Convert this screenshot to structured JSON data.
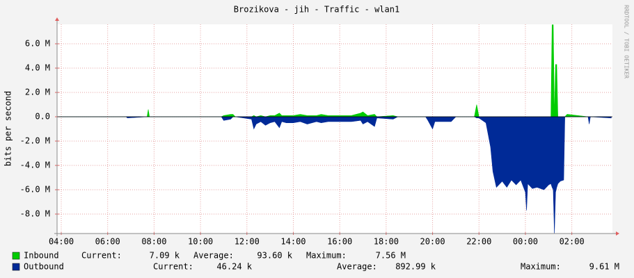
{
  "chart_data": {
    "type": "area",
    "title": "Brozikova - jih - Traffic - wlan1",
    "y_label": "bits per second",
    "watermark": "RRDTOOL / TOBI OETIKER",
    "grid": true,
    "xlim": [
      3.82,
      27.75
    ],
    "xticks": [
      {
        "value": 4,
        "label": "04:00"
      },
      {
        "value": 6,
        "label": "06:00"
      },
      {
        "value": 8,
        "label": "08:00"
      },
      {
        "value": 10,
        "label": "10:00"
      },
      {
        "value": 12,
        "label": "12:00"
      },
      {
        "value": 14,
        "label": "14:00"
      },
      {
        "value": 16,
        "label": "16:00"
      },
      {
        "value": 18,
        "label": "18:00"
      },
      {
        "value": 20,
        "label": "20:00"
      },
      {
        "value": 22,
        "label": "22:00"
      },
      {
        "value": 24,
        "label": "00:00"
      },
      {
        "value": 26,
        "label": "02:00"
      }
    ],
    "ylim": [
      -9600000,
      7600000
    ],
    "yticks": [
      {
        "value": 6000000,
        "label": "6.0 M"
      },
      {
        "value": 4000000,
        "label": "4.0 M"
      },
      {
        "value": 2000000,
        "label": "2.0 M"
      },
      {
        "value": 0,
        "label": "0.0"
      },
      {
        "value": -2000000,
        "label": "-2.0 M"
      },
      {
        "value": -4000000,
        "label": "-4.0 M"
      },
      {
        "value": -6000000,
        "label": "-6.0 M"
      },
      {
        "value": -8000000,
        "label": "-8.0 M"
      }
    ],
    "x": [
      3.82,
      6.8,
      6.85,
      7.7,
      7.75,
      7.8,
      10.9,
      11.0,
      11.3,
      11.4,
      11.5,
      12.2,
      12.3,
      12.4,
      12.6,
      12.8,
      13.0,
      13.2,
      13.4,
      13.5,
      13.7,
      14.0,
      14.3,
      14.6,
      15.0,
      15.2,
      15.5,
      16.0,
      16.5,
      16.9,
      17.0,
      17.2,
      17.5,
      17.6,
      18.3,
      18.5,
      19.7,
      19.8,
      20.0,
      20.1,
      20.3,
      20.8,
      21.0,
      21.8,
      21.9,
      22.0,
      22.3,
      22.4,
      22.5,
      22.6,
      22.75,
      23.0,
      23.2,
      23.4,
      23.6,
      23.8,
      24.0,
      24.05,
      24.1,
      24.3,
      24.5,
      24.8,
      25.0,
      25.1,
      25.15,
      25.2,
      25.25,
      25.3,
      25.35,
      25.4,
      25.5,
      25.65,
      25.7,
      25.8,
      26.7,
      26.75,
      26.8,
      27.7
    ],
    "series": [
      {
        "name": "Inbound",
        "color": "#00cc00",
        "values": [
          0,
          0,
          0,
          0,
          600000,
          0,
          0,
          100000,
          200000,
          200000,
          0,
          0,
          100000,
          0,
          100000,
          0,
          100000,
          100000,
          300000,
          100000,
          100000,
          100000,
          200000,
          100000,
          100000,
          200000,
          100000,
          100000,
          100000,
          300000,
          400000,
          100000,
          200000,
          0,
          100000,
          0,
          0,
          0,
          0,
          0,
          0,
          0,
          0,
          0,
          1000000,
          0,
          0,
          0,
          0,
          0,
          0,
          0,
          0,
          0,
          0,
          0,
          0,
          0,
          0,
          0,
          0,
          0,
          0,
          0,
          7560000,
          7560000,
          0,
          4300000,
          4300000,
          0,
          0,
          0,
          0,
          200000,
          0,
          0,
          0,
          0
        ],
        "stats": [
          {
            "label": "Current:",
            "value": 7090,
            "value_label": "7.09 k"
          },
          {
            "label": "Average:",
            "value": 93600,
            "value_label": "93.60 k"
          },
          {
            "label": "Maximum:",
            "value": 7560000,
            "value_label": "7.56 M"
          }
        ]
      },
      {
        "name": "Outbound",
        "color": "#002a97",
        "values": [
          0,
          0,
          -100000,
          0,
          0,
          0,
          0,
          -300000,
          -200000,
          0,
          0,
          -200000,
          -1000000,
          -600000,
          -400000,
          -700000,
          -500000,
          -400000,
          -900000,
          -400000,
          -500000,
          -500000,
          -400000,
          -600000,
          -400000,
          -500000,
          -400000,
          -400000,
          -400000,
          -300000,
          -600000,
          -400000,
          -800000,
          -100000,
          -200000,
          0,
          0,
          -300000,
          -1000000,
          -400000,
          -400000,
          -400000,
          0,
          0,
          -100000,
          -100000,
          -500000,
          -1500000,
          -2500000,
          -4500000,
          -5800000,
          -5300000,
          -5800000,
          -5200000,
          -5600000,
          -5200000,
          -6200000,
          -7700000,
          -5500000,
          -5900000,
          -5800000,
          -6000000,
          -5600000,
          -5500000,
          -5800000,
          -6000000,
          -9610000,
          -6200000,
          -5800000,
          -5500000,
          -5300000,
          -5200000,
          0,
          0,
          0,
          -600000,
          0,
          -100000
        ],
        "stats": [
          {
            "label": "Current:",
            "value": 46240,
            "value_label": "46.24 k"
          },
          {
            "label": "Average:",
            "value": 892990,
            "value_label": "892.99 k"
          },
          {
            "label": "Maximum:",
            "value": 9610000,
            "value_label": "9.61 M"
          }
        ]
      }
    ]
  }
}
